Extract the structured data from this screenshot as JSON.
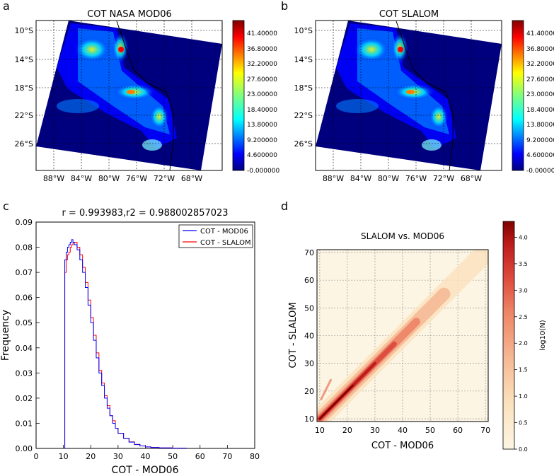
{
  "panels": {
    "a": "a",
    "b": "b",
    "c": "c",
    "d": "d"
  },
  "map_lat_labels": [
    "10°S",
    "14°S",
    "18°S",
    "22°S",
    "26°S"
  ],
  "map_lon_labels": [
    "88°W",
    "84°W",
    "80°W",
    "76°W",
    "72°W",
    "68°W"
  ],
  "colors": {
    "ocean": "#00007f",
    "jet": [
      "#00007f",
      "#0000ff",
      "#007fff",
      "#00ffff",
      "#7fff7f",
      "#ffff00",
      "#ff7f00",
      "#ff0000",
      "#7f0000"
    ],
    "hist_mod06": "#0000ff",
    "hist_slalom": "#ff0000",
    "density": [
      "#fcf5e4",
      "#fbe2bd",
      "#f6b894",
      "#ee8566",
      "#dd4b3e",
      "#be1c1c",
      "#7f0000"
    ]
  },
  "chart_data": [
    {
      "type": "heatmap",
      "title": "COT NASA MOD06",
      "colorbar_ticks": [
        "41.40000",
        "36.80000",
        "32.20000",
        "27.60000",
        "23.00000",
        "18.40000",
        "13.80000",
        "9.200000",
        "4.600000",
        "-0.000000"
      ],
      "colorbar_range": [
        0,
        46
      ],
      "lat_ticks": [
        "10°S",
        "14°S",
        "18°S",
        "22°S",
        "26°S"
      ],
      "lon_ticks": [
        "88°W",
        "84°W",
        "80°W",
        "76°W",
        "72°W",
        "68°W"
      ]
    },
    {
      "type": "heatmap",
      "title": "COT SLALOM",
      "colorbar_ticks": [
        "41.40000",
        "36.80000",
        "32.20000",
        "27.60000",
        "23.00000",
        "18.40000",
        "13.80000",
        "9.200000",
        "4.600000",
        "-0.000000"
      ],
      "colorbar_range": [
        0,
        46
      ],
      "lat_ticks": [
        "10°S",
        "14°S",
        "18°S",
        "22°S",
        "26°S"
      ],
      "lon_ticks": [
        "88°W",
        "84°W",
        "80°W",
        "76°W",
        "72°W",
        "68°W"
      ]
    },
    {
      "type": "line",
      "title": "r = 0.993983,r2 = 0.988002857023",
      "xlabel": "COT - MOD06",
      "ylabel": "Frequency",
      "xlim": [
        0,
        80
      ],
      "ylim": [
        0,
        0.09
      ],
      "xticks": [
        "0",
        "10",
        "20",
        "30",
        "40",
        "50",
        "60",
        "70",
        "80"
      ],
      "yticks": [
        "0.00",
        "0.01",
        "0.02",
        "0.03",
        "0.04",
        "0.05",
        "0.06",
        "0.07",
        "0.08",
        "0.09"
      ],
      "legend_position": "top-right",
      "series": [
        {
          "name": "COT - MOD06",
          "x": [
            10,
            10.5,
            11,
            11.5,
            12,
            12.5,
            13,
            13.5,
            14,
            15,
            16,
            17,
            18,
            19,
            20,
            21,
            22,
            23,
            24,
            25,
            26,
            27,
            28,
            29,
            30,
            32,
            34,
            36,
            38,
            40,
            42,
            45,
            50,
            55
          ],
          "y": [
            0.0,
            0.075,
            0.078,
            0.08,
            0.081,
            0.082,
            0.083,
            0.082,
            0.081,
            0.079,
            0.075,
            0.07,
            0.064,
            0.057,
            0.05,
            0.043,
            0.036,
            0.03,
            0.025,
            0.02,
            0.016,
            0.013,
            0.01,
            0.008,
            0.006,
            0.004,
            0.0025,
            0.0015,
            0.001,
            0.0006,
            0.0004,
            0.0002,
            0.0001,
            0.0
          ]
        },
        {
          "name": "COT - SLALOM",
          "x": [
            10,
            10.5,
            11,
            11.5,
            12,
            12.5,
            13,
            13.5,
            14,
            15,
            16,
            17,
            18,
            19,
            20,
            21,
            22,
            23,
            24,
            25,
            26,
            27,
            28,
            29,
            30,
            32,
            34,
            36,
            38,
            40,
            42,
            45,
            50,
            55
          ],
          "y": [
            0.0,
            0.07,
            0.075,
            0.077,
            0.078,
            0.08,
            0.081,
            0.082,
            0.082,
            0.08,
            0.077,
            0.072,
            0.066,
            0.059,
            0.052,
            0.045,
            0.038,
            0.031,
            0.026,
            0.021,
            0.017,
            0.013,
            0.011,
            0.008,
            0.006,
            0.004,
            0.0026,
            0.0016,
            0.001,
            0.0006,
            0.0004,
            0.0002,
            0.0001,
            0.0
          ]
        }
      ]
    },
    {
      "type": "scatter",
      "title": "SLALOM vs. MOD06",
      "xlabel": "COT - MOD06",
      "ylabel": "COT - SLALOM",
      "xlim": [
        9,
        71
      ],
      "ylim": [
        9,
        71
      ],
      "xticks": [
        "10",
        "20",
        "30",
        "40",
        "50",
        "60",
        "70"
      ],
      "yticks": [
        "10",
        "20",
        "30",
        "40",
        "50",
        "60",
        "70"
      ],
      "colorbar_label": "log10(N)",
      "colorbar_ticks": [
        "0.0",
        "0.5",
        "1.0",
        "1.5",
        "2.0",
        "2.5",
        "3.0",
        "3.5",
        "4.0"
      ],
      "colorbar_range": [
        0,
        4.3
      ]
    }
  ]
}
